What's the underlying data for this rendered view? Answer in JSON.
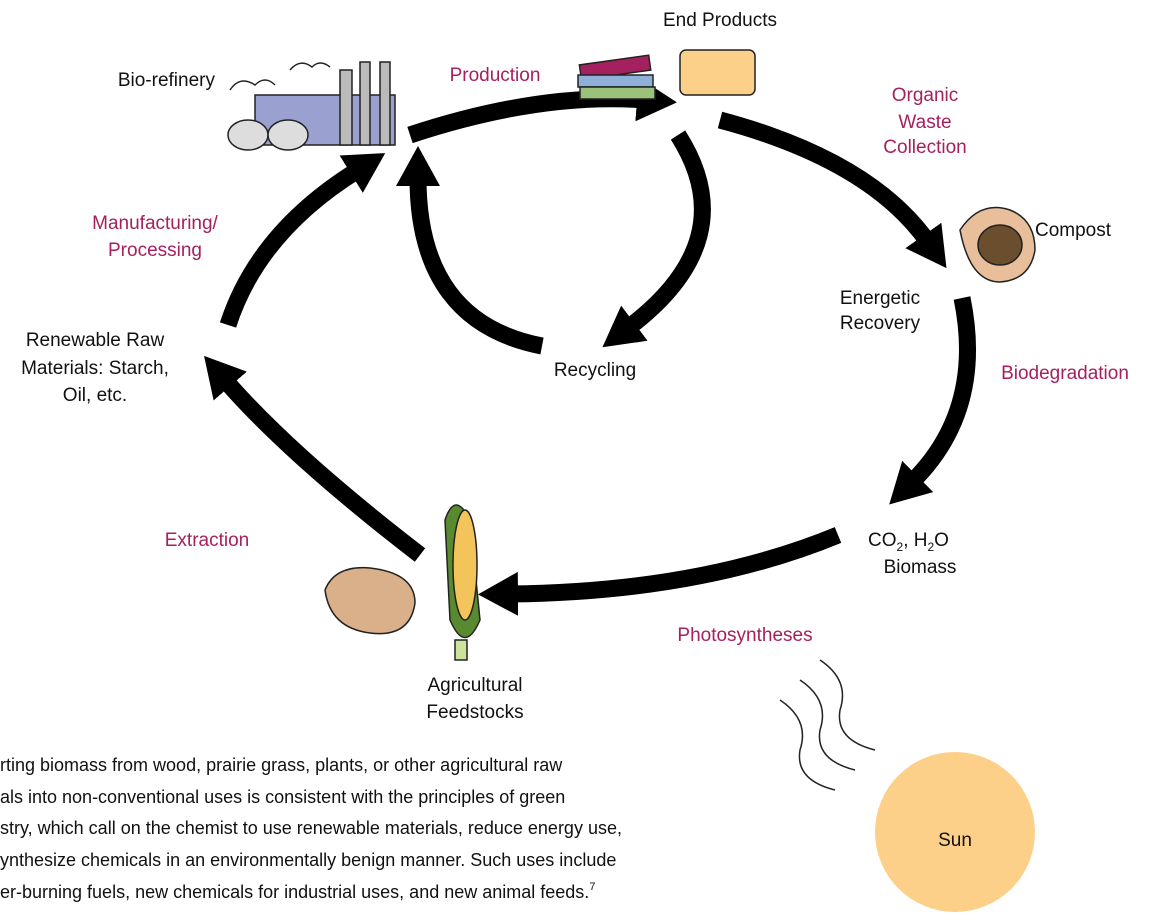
{
  "title_labels": {
    "bio_refinery": "Bio-refinery",
    "production": "Production",
    "end_products": "End Products",
    "organic_waste_collection": [
      "Organic",
      "Waste",
      "Collection"
    ],
    "compost": "Compost",
    "energetic_recovery": [
      "Energetic",
      "Recovery"
    ],
    "biodegradation": "Biodegradation",
    "manufacturing_processing": [
      "Manufacturing/",
      "Processing"
    ],
    "renewable_raw_materials": [
      "Renewable Raw",
      "Materials: Starch,",
      "Oil, etc."
    ],
    "recycling": "Recycling",
    "extraction": "Extraction",
    "co2_h2o": [
      "CO",
      "2",
      ", H",
      "2",
      "O"
    ],
    "biomass": "Biomass",
    "photosyntheses": "Photosyntheses",
    "agricultural_feedstocks": [
      "Agricultural",
      "Feedstocks"
    ],
    "sun": "Sun"
  },
  "paragraph": {
    "lines": [
      "rting biomass from wood, prairie grass, plants, or other agricultural raw",
      "als into non-conventional uses is consistent with the principles of green",
      "stry, which call on the chemist to use renewable materials, reduce energy use,",
      "ynthesize chemicals in an environmentally benign manner. Such uses include",
      "er-burning fuels, new chemicals for industrial uses, and new animal feeds."
    ],
    "footnote": "7"
  }
}
